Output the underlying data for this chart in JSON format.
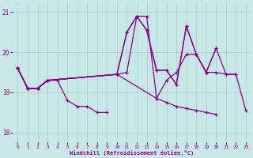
{
  "xlabel": "Windchill (Refroidissement éolien,°C)",
  "background_color": "#c8e8e8",
  "line_color": "#880088",
  "grid_color": "#aacccc",
  "xlim": [
    -0.5,
    23.5
  ],
  "ylim": [
    17.75,
    21.25
  ],
  "yticks": [
    18,
    19,
    20,
    21
  ],
  "xticks": [
    0,
    1,
    2,
    3,
    4,
    5,
    6,
    7,
    8,
    9,
    10,
    11,
    12,
    13,
    14,
    15,
    16,
    17,
    18,
    19,
    20,
    21,
    22,
    23
  ],
  "series": [
    [
      [
        0,
        1,
        2,
        3,
        4,
        5,
        6,
        7,
        8,
        9
      ],
      [
        19.6,
        19.1,
        19.1,
        19.3,
        19.3,
        18.8,
        18.65,
        18.65,
        18.5,
        18.5
      ]
    ],
    [
      [
        0,
        1,
        2,
        3,
        10,
        11,
        12,
        13,
        14,
        15,
        16,
        17,
        18,
        19,
        20,
        21,
        22
      ],
      [
        19.6,
        19.1,
        19.1,
        19.3,
        19.45,
        19.5,
        20.9,
        20.9,
        18.85,
        19.3,
        19.5,
        19.95,
        19.95,
        19.5,
        19.5,
        19.45,
        19.45
      ]
    ],
    [
      [
        0,
        1,
        2,
        3,
        10,
        11,
        12,
        13,
        14,
        15,
        16,
        17,
        18,
        19,
        20
      ],
      [
        19.6,
        19.1,
        19.1,
        19.3,
        19.45,
        20.5,
        20.9,
        20.55,
        19.55,
        19.55,
        19.2,
        20.65,
        19.95,
        19.5,
        20.1
      ]
    ],
    [
      [
        0,
        1,
        2,
        3,
        10,
        11,
        12,
        13,
        14,
        15,
        16,
        17,
        18,
        19,
        20,
        21,
        22,
        23
      ],
      [
        19.6,
        19.1,
        19.1,
        19.3,
        19.45,
        20.5,
        20.9,
        20.55,
        19.55,
        19.55,
        19.2,
        20.65,
        19.95,
        19.5,
        20.1,
        19.45,
        19.45,
        18.55
      ]
    ],
    [
      [
        0,
        1,
        2,
        3,
        10,
        14,
        15,
        16,
        17,
        18,
        19,
        20
      ],
      [
        19.6,
        19.1,
        19.1,
        19.3,
        19.45,
        18.85,
        18.75,
        18.65,
        18.6,
        18.55,
        18.5,
        18.45
      ]
    ]
  ]
}
